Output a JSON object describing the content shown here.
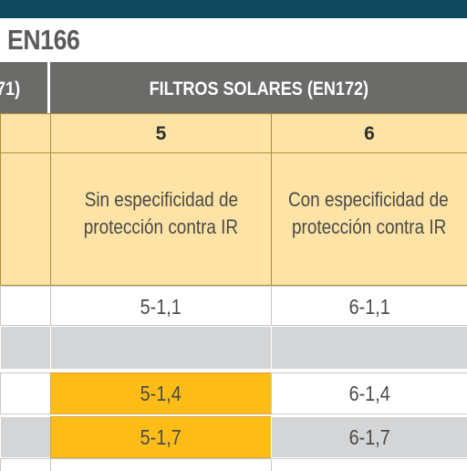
{
  "title": "EN166",
  "headers": {
    "left_fragment": "71)",
    "solar_filters": "FILTROS SOLARES (EN172)"
  },
  "columns": [
    {
      "number": "5",
      "line1": "Sin especificidad de",
      "line2": "protección contra IR"
    },
    {
      "number": "6",
      "line1": "Con especificidad de",
      "line2": "protección contra IR"
    }
  ],
  "rows": [
    {
      "c5": "5-1,1",
      "c6": "6-1,1"
    },
    {
      "c5": "",
      "c6": ""
    },
    {
      "c5": "5-1,4",
      "c6": "6-1,4"
    },
    {
      "c5": "5-1,7",
      "c6": "6-1,7"
    }
  ],
  "colors": {
    "top_bar": "#0e4a5e",
    "header_grey": "#6b6b69",
    "tan": "#fde3a6",
    "highlight_yellow": "#fdbc16",
    "row_grey": "#d4d5d7"
  }
}
